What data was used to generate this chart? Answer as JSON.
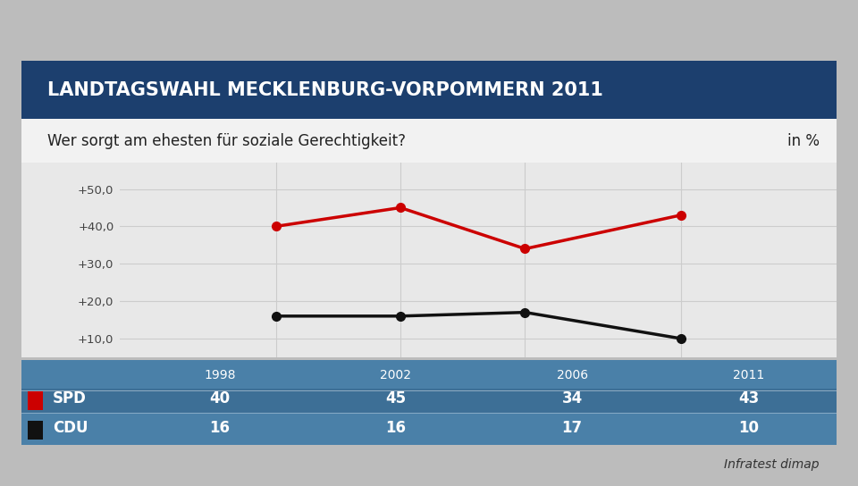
{
  "title": "LANDTAGSWAHL MECKLENBURG-VORPOMMERN 2011",
  "subtitle": "Wer sorgt am ehesten für soziale Gerechtigkeit?",
  "unit_label": "in %",
  "title_bg_color": "#1c3f6e",
  "subtitle_bg_color": "#f0f0f0",
  "chart_bg_color": "#e8e8e8",
  "table_bg_color": "#4a80a8",
  "years": [
    1998,
    2002,
    2006,
    2011
  ],
  "spd_values": [
    40,
    45,
    34,
    43
  ],
  "cdu_values": [
    16,
    16,
    17,
    10
  ],
  "spd_color": "#cc0000",
  "cdu_color": "#111111",
  "spd_label": "SPD",
  "cdu_label": "CDU",
  "yticks": [
    10,
    20,
    30,
    40,
    50
  ],
  "ytick_labels": [
    "+10,0",
    "+20,0",
    "+30,0",
    "+40,0",
    "+50,0"
  ],
  "ylim": [
    5,
    57
  ],
  "source": "Infratest dimap",
  "outer_bg_color": "#bcbcbc",
  "title_font_color": "#ffffff",
  "subtitle_font_color": "#222222"
}
